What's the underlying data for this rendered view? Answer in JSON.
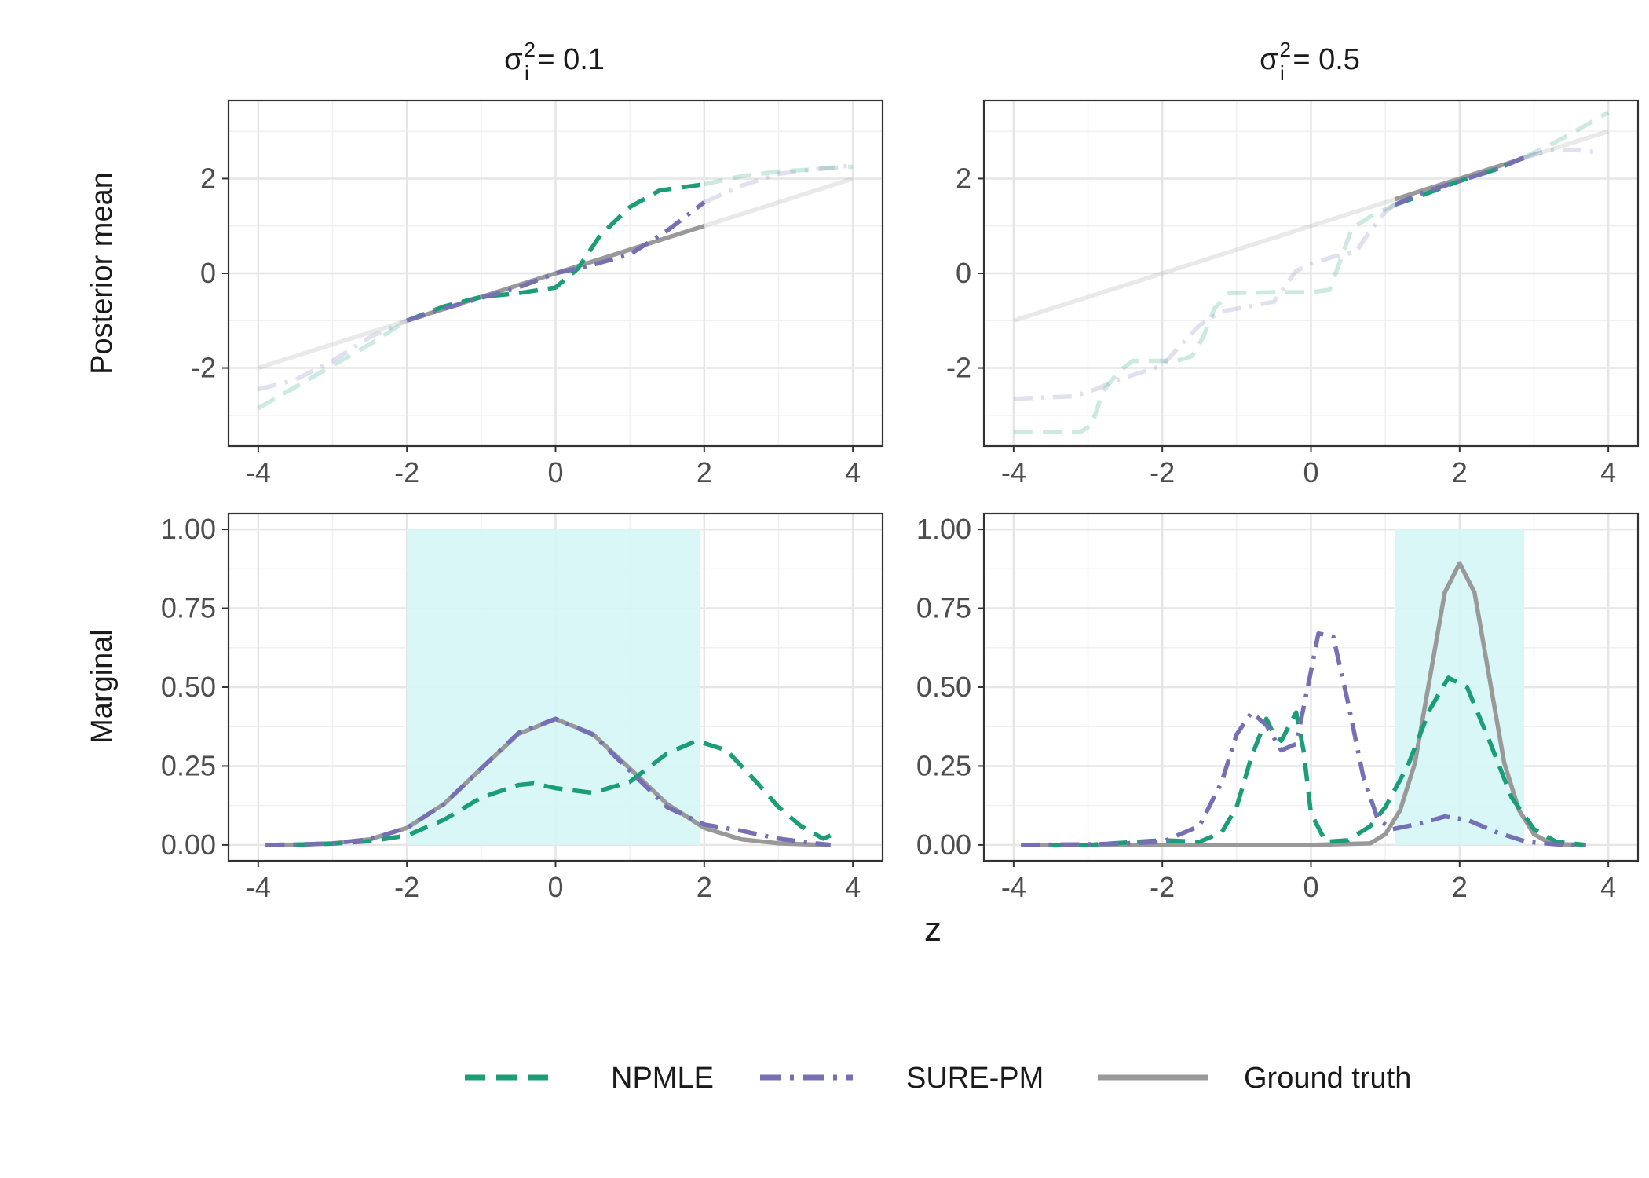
{
  "figure": {
    "xlabel": "z",
    "row_labels": [
      "Posterior mean",
      "Marginal"
    ],
    "column_titles": [
      {
        "symbol": "σ",
        "superscript": "2",
        "subscript": "i",
        "rest": " = 0.1"
      },
      {
        "symbol": "σ",
        "superscript": "2",
        "subscript": "i",
        "rest": " = 0.5"
      }
    ],
    "legend": [
      {
        "label": "NPMLE",
        "color": "#1b9e77",
        "style": "dashed"
      },
      {
        "label": "SURE-PM",
        "color": "#7570b3",
        "style": "dotdash"
      },
      {
        "label": "Ground truth",
        "color": "#999999",
        "style": "solid"
      }
    ]
  },
  "chart_data": [
    {
      "type": "line",
      "panel": "top-left",
      "title": "σᵢ² = 0.1",
      "ylabel": "Posterior mean",
      "xlabel": "z",
      "xlim": [
        -4.4,
        4.4
      ],
      "ylim": [
        -3.65,
        3.65
      ],
      "xticks": [
        -4,
        -2,
        0,
        2,
        4
      ],
      "yticks": [
        -2,
        0,
        2
      ],
      "shade": null,
      "series": [
        {
          "name": "Ground truth",
          "x": [
            -4,
            -2,
            0,
            2,
            4
          ],
          "y": [
            -2,
            -1,
            0,
            1,
            2
          ],
          "faded": [
            [
              -4,
              -2
            ],
            [
              2,
              4
            ]
          ]
        },
        {
          "name": "NPMLE",
          "x": [
            -4,
            -3.5,
            -3,
            -2.5,
            -2,
            -1.5,
            -1,
            -0.5,
            0,
            0.3,
            0.6,
            1,
            1.4,
            2,
            2.5,
            3,
            3.5,
            4
          ],
          "y": [
            -2.85,
            -2.4,
            -1.95,
            -1.5,
            -1,
            -0.7,
            -0.5,
            -0.42,
            -0.3,
            0.1,
            0.8,
            1.4,
            1.75,
            1.88,
            2.05,
            2.15,
            2.2,
            2.25
          ],
          "faded": [
            [
              -4,
              -2
            ],
            [
              2,
              4
            ]
          ]
        },
        {
          "name": "SURE-PM",
          "x": [
            -4,
            -3.5,
            -3,
            -2.5,
            -2,
            -1.5,
            -1,
            -0.5,
            0,
            0.5,
            1,
            1.5,
            2,
            2.5,
            3,
            3.5,
            4
          ],
          "y": [
            -2.45,
            -2.25,
            -1.85,
            -1.35,
            -1,
            -0.75,
            -0.52,
            -0.3,
            0,
            0.18,
            0.4,
            0.9,
            1.5,
            1.85,
            2.1,
            2.2,
            2.28
          ],
          "faded": [
            [
              -4,
              -2
            ],
            [
              2,
              4
            ]
          ]
        }
      ]
    },
    {
      "type": "line",
      "panel": "top-right",
      "title": "σᵢ² = 0.5",
      "xlabel": "z",
      "xlim": [
        -4.4,
        4.4
      ],
      "ylim": [
        -3.65,
        3.65
      ],
      "xticks": [
        -4,
        -2,
        0,
        2,
        4
      ],
      "yticks": [
        -2,
        0,
        2
      ],
      "shade": null,
      "series": [
        {
          "name": "Ground truth",
          "x": [
            -4,
            1.13,
            2.87,
            4
          ],
          "y": [
            -1,
            1.565,
            2.435,
            3
          ],
          "faded": [
            [
              -4,
              1.13
            ],
            [
              2.87,
              4
            ]
          ]
        },
        {
          "name": "NPMLE",
          "x": [
            -4,
            -3.1,
            -2.95,
            -2.8,
            -2.6,
            -2.4,
            -2,
            -1.8,
            -1.6,
            -1.45,
            -1.3,
            -1.1,
            -0.5,
            0,
            0.25,
            0.4,
            0.55,
            0.8,
            1,
            1.13,
            1.5,
            2,
            2.5,
            2.87,
            3.2,
            3.5,
            4
          ],
          "y": [
            -3.35,
            -3.35,
            -3.2,
            -2.5,
            -2.1,
            -1.85,
            -1.85,
            -1.85,
            -1.75,
            -1.35,
            -0.75,
            -0.42,
            -0.4,
            -0.4,
            -0.35,
            0.3,
            0.95,
            1.2,
            1.35,
            1.45,
            1.65,
            1.95,
            2.2,
            2.45,
            2.7,
            2.95,
            3.4
          ],
          "faded": [
            [
              -4,
              1.13
            ],
            [
              2.87,
              4
            ]
          ]
        },
        {
          "name": "SURE-PM",
          "x": [
            -4,
            -3.2,
            -2.9,
            -2.6,
            -2.2,
            -2,
            -1.8,
            -1.5,
            -1.2,
            -1,
            -0.5,
            -0.2,
            0,
            0.3,
            0.6,
            0.8,
            1,
            1.13,
            1.5,
            2,
            2.5,
            2.87,
            3.2,
            3.6,
            3.9
          ],
          "y": [
            -2.65,
            -2.6,
            -2.45,
            -2.25,
            -2.05,
            -1.95,
            -1.6,
            -1.1,
            -0.8,
            -0.75,
            -0.6,
            0.05,
            0.2,
            0.35,
            0.45,
            0.9,
            1.3,
            1.45,
            1.7,
            1.95,
            2.2,
            2.45,
            2.6,
            2.6,
            2.55
          ],
          "faded": [
            [
              -4,
              1.13
            ],
            [
              2.87,
              4
            ]
          ]
        }
      ]
    },
    {
      "type": "line",
      "panel": "bottom-left",
      "ylabel": "Marginal",
      "xlabel": "z",
      "xlim": [
        -4.4,
        4.4
      ],
      "ylim": [
        -0.05,
        1.05
      ],
      "xticks": [
        -4,
        -2,
        0,
        2,
        4
      ],
      "yticks": [
        0,
        0.25,
        0.5,
        0.75,
        1
      ],
      "ytick_labels": [
        "0.00",
        "0.25",
        "0.50",
        "0.75",
        "1.00"
      ],
      "shade": {
        "x": [
          -2,
          1.95
        ],
        "y": [
          0,
          1
        ],
        "color": "#d5f6f6"
      },
      "series": [
        {
          "name": "Ground truth",
          "x": [
            -3.9,
            -3.5,
            -3,
            -2.5,
            -2,
            -1.5,
            -1,
            -0.5,
            0,
            0.5,
            1,
            1.5,
            2,
            2.5,
            3,
            3.5,
            3.7
          ],
          "y": [
            0,
            0.001,
            0.005,
            0.018,
            0.054,
            0.13,
            0.242,
            0.352,
            0.399,
            0.352,
            0.242,
            0.13,
            0.054,
            0.018,
            0.005,
            0.001,
            0
          ]
        },
        {
          "name": "NPMLE",
          "x": [
            -3.9,
            -3.5,
            -3,
            -2.5,
            -2,
            -1.5,
            -1,
            -0.5,
            -0.3,
            0,
            0.5,
            1,
            1.5,
            1.9,
            2.3,
            2.7,
            3,
            3.3,
            3.6,
            3.7
          ],
          "y": [
            0,
            0.001,
            0.004,
            0.012,
            0.03,
            0.08,
            0.15,
            0.19,
            0.195,
            0.18,
            0.165,
            0.2,
            0.29,
            0.33,
            0.3,
            0.2,
            0.12,
            0.06,
            0.02,
            0.03
          ]
        },
        {
          "name": "SURE-PM",
          "x": [
            -3.9,
            -3.5,
            -3,
            -2.5,
            -2,
            -1.5,
            -1,
            -0.5,
            0,
            0.5,
            1,
            1.5,
            2,
            2.5,
            3,
            3.5,
            3.7
          ],
          "y": [
            0,
            0.001,
            0.005,
            0.018,
            0.054,
            0.13,
            0.242,
            0.355,
            0.4,
            0.35,
            0.235,
            0.12,
            0.065,
            0.045,
            0.02,
            0.005,
            0
          ]
        }
      ]
    },
    {
      "type": "line",
      "panel": "bottom-right",
      "xlabel": "z",
      "xlim": [
        -4.4,
        4.4
      ],
      "ylim": [
        -0.05,
        1.05
      ],
      "xticks": [
        -4,
        -2,
        0,
        2,
        4
      ],
      "yticks": [
        0,
        0.25,
        0.5,
        0.75,
        1
      ],
      "ytick_labels": [
        "0.00",
        "0.25",
        "0.50",
        "0.75",
        "1.00"
      ],
      "shade": {
        "x": [
          1.13,
          2.87
        ],
        "y": [
          0,
          1
        ],
        "color": "#d5f6f6"
      },
      "series": [
        {
          "name": "Ground truth",
          "x": [
            -3.9,
            0,
            0.8,
            1.0,
            1.2,
            1.4,
            1.6,
            1.8,
            2,
            2.2,
            2.4,
            2.6,
            2.8,
            3,
            3.2,
            3.4,
            3.7
          ],
          "y": [
            0,
            0,
            0.005,
            0.034,
            0.11,
            0.26,
            0.53,
            0.8,
            0.893,
            0.8,
            0.53,
            0.26,
            0.11,
            0.034,
            0.008,
            0.002,
            0
          ]
        },
        {
          "name": "NPMLE",
          "x": [
            -3.9,
            -3,
            -2,
            -1.5,
            -1.2,
            -1,
            -0.8,
            -0.6,
            -0.5,
            -0.4,
            -0.2,
            -0.1,
            0,
            0.2,
            0.5,
            0.8,
            1,
            1.3,
            1.6,
            1.85,
            2.1,
            2.4,
            2.7,
            3,
            3.3,
            3.7
          ],
          "y": [
            0,
            0,
            0.015,
            0.01,
            0.04,
            0.12,
            0.28,
            0.4,
            0.35,
            0.33,
            0.42,
            0.3,
            0.1,
            0.01,
            0.015,
            0.06,
            0.12,
            0.25,
            0.43,
            0.53,
            0.5,
            0.33,
            0.15,
            0.05,
            0.01,
            0
          ]
        },
        {
          "name": "SURE-PM",
          "x": [
            -3.9,
            -3,
            -2.5,
            -2,
            -1.5,
            -1.2,
            -1,
            -0.8,
            -0.6,
            -0.4,
            -0.2,
            0,
            0.1,
            0.3,
            0.5,
            0.7,
            0.9,
            1.1,
            1.5,
            1.8,
            2.1,
            2.5,
            2.9,
            3.3,
            3.7
          ],
          "y": [
            0,
            0.002,
            0.005,
            0.01,
            0.06,
            0.2,
            0.35,
            0.42,
            0.38,
            0.3,
            0.32,
            0.55,
            0.67,
            0.66,
            0.45,
            0.22,
            0.08,
            0.05,
            0.07,
            0.09,
            0.08,
            0.04,
            0.01,
            0.002,
            0
          ]
        }
      ]
    }
  ]
}
